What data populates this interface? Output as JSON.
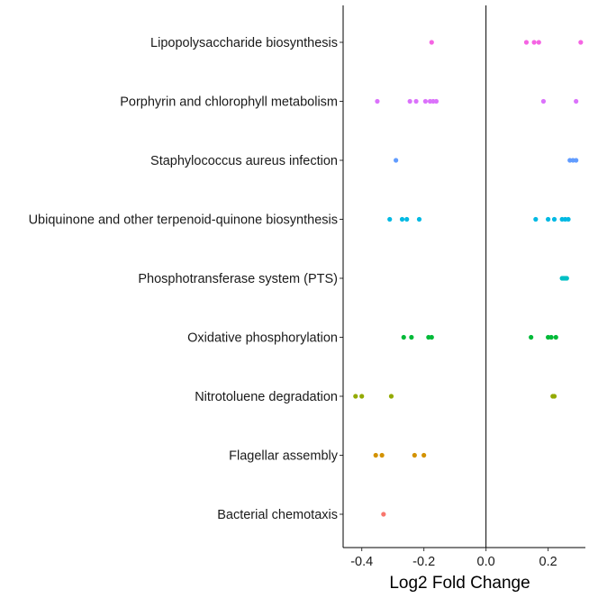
{
  "chart_data": {
    "type": "scatter",
    "title": "",
    "xlabel": "Log2 Fold Change",
    "ylabel": "",
    "xlim": [
      -0.46,
      0.32
    ],
    "xticks": [
      -0.4,
      -0.2,
      0.0,
      0.2
    ],
    "xtick_labels": [
      "-0.4",
      "-0.2",
      "0.0",
      "0.2"
    ],
    "reference_line_x": 0,
    "grid": false,
    "categories": [
      "Lipopolysaccharide biosynthesis",
      "Porphyrin and chlorophyll metabolism",
      "Staphylococcus aureus infection",
      "Ubiquinone and other terpenoid-quinone biosynthesis",
      "Phosphotransferase system (PTS)",
      "Oxidative phosphorylation",
      "Nitrotoluene degradation",
      "Flagellar assembly",
      "Bacterial chemotaxis"
    ],
    "series": [
      {
        "category": "Lipopolysaccharide biosynthesis",
        "color": "#F564E3",
        "x": [
          -0.175,
          0.13,
          0.155,
          0.17,
          0.305
        ]
      },
      {
        "category": "Porphyrin and chlorophyll metabolism",
        "color": "#DB72FB",
        "x": [
          -0.35,
          -0.245,
          -0.225,
          -0.195,
          -0.18,
          -0.17,
          -0.16,
          0.185,
          0.29
        ]
      },
      {
        "category": "Staphylococcus aureus infection",
        "color": "#619CFF",
        "x": [
          -0.29,
          0.27,
          0.28,
          0.29
        ]
      },
      {
        "category": "Ubiquinone and other terpenoid-quinone biosynthesis",
        "color": "#00B9E3",
        "x": [
          -0.31,
          -0.27,
          -0.255,
          -0.215,
          0.16,
          0.2,
          0.22,
          0.245,
          0.255,
          0.265
        ]
      },
      {
        "category": "Phosphotransferase system (PTS)",
        "color": "#00BFC4",
        "x": [
          0.245,
          0.25,
          0.255,
          0.26
        ]
      },
      {
        "category": "Oxidative phosphorylation",
        "color": "#00BA38",
        "x": [
          -0.265,
          -0.24,
          -0.185,
          -0.175,
          0.145,
          0.2,
          0.21,
          0.225
        ]
      },
      {
        "category": "Nitrotoluene degradation",
        "color": "#93AA00",
        "x": [
          -0.42,
          -0.4,
          -0.305,
          0.215,
          0.22
        ]
      },
      {
        "category": "Flagellar assembly",
        "color": "#D39200",
        "x": [
          -0.355,
          -0.335,
          -0.23,
          -0.2
        ]
      },
      {
        "category": "Bacterial chemotaxis",
        "color": "#F8766D",
        "x": [
          -0.33
        ]
      }
    ]
  }
}
